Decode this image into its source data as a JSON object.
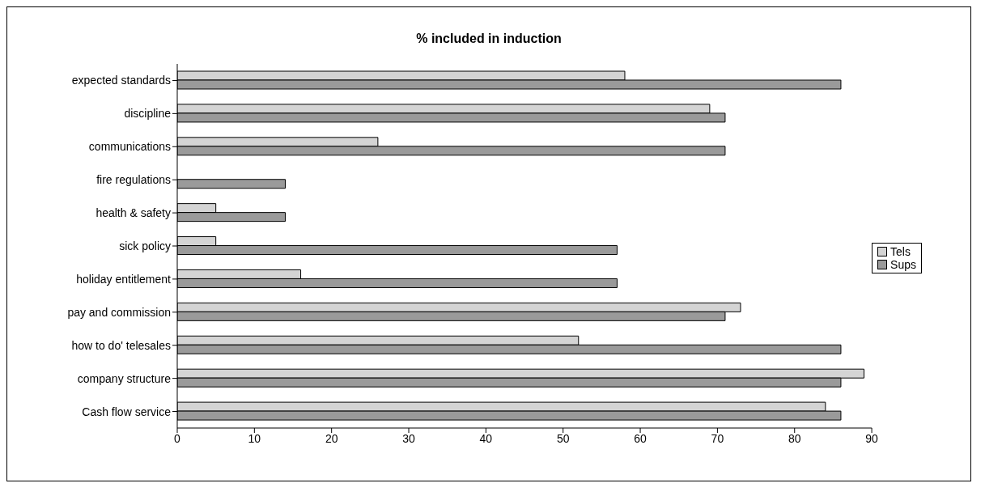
{
  "chart_data": {
    "type": "bar",
    "orientation": "horizontal",
    "title": "% included in induction",
    "categories": [
      "expected standards",
      "discipline",
      "communications",
      "fire regulations",
      "health & safety",
      "sick policy",
      "holiday entitlement",
      "pay and commission",
      "how to do' telesales",
      "company structure",
      "Cash flow service"
    ],
    "series": [
      {
        "name": "Tels",
        "color": "#d4d4d4",
        "values": [
          58,
          69,
          26,
          0,
          5,
          5,
          16,
          73,
          52,
          89,
          84
        ]
      },
      {
        "name": "Sups",
        "color": "#9a9a9a",
        "values": [
          86,
          71,
          71,
          14,
          14,
          57,
          57,
          71,
          86,
          86,
          86
        ]
      }
    ],
    "xlim": [
      0,
      90
    ],
    "xticks": [
      0,
      10,
      20,
      30,
      40,
      50,
      60,
      70,
      80,
      90
    ],
    "legend": "right"
  }
}
